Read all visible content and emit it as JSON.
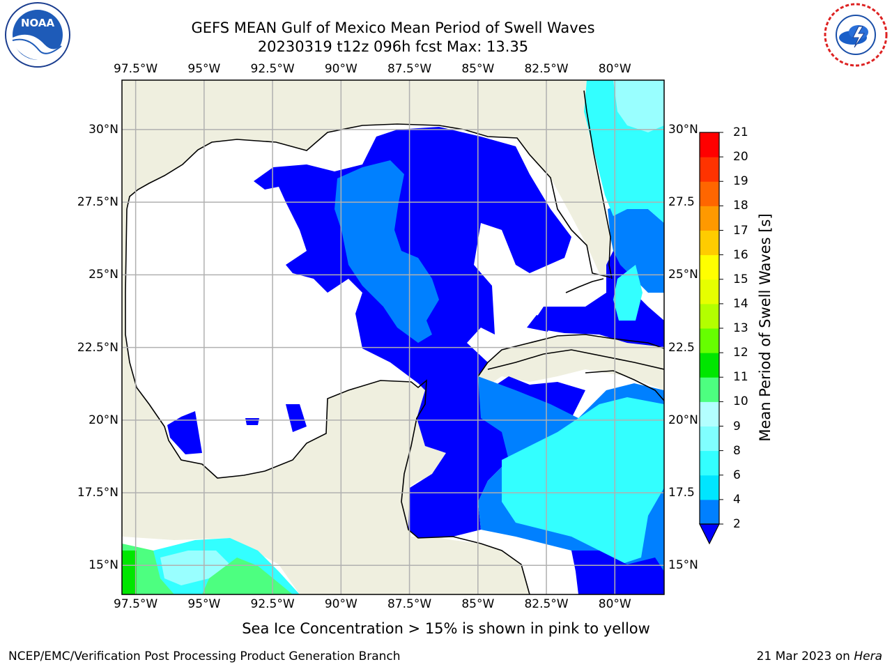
{
  "header": {
    "title_line1": "GEFS MEAN Gulf of Mexico Mean Period of Swell Waves",
    "title_line2": "20230319 t12z 096h fcst   Max: 13.35"
  },
  "map": {
    "lon_labels": [
      "97.5°W",
      "95°W",
      "92.5°W",
      "90°W",
      "87.5°W",
      "85°W",
      "82.5°W",
      "80°W"
    ],
    "lat_labels_left": [
      "30°N",
      "27.5°N",
      "25°N",
      "22.5°N",
      "20°N",
      "17.5°N",
      "15°N"
    ],
    "lat_labels_right": [
      "30°N",
      "27.5",
      "25°N",
      "22.5",
      "20°N",
      "17.5",
      "15°N"
    ],
    "gridlines": true,
    "extent": {
      "lon_min": -98.0,
      "lon_max": -78.2,
      "lat_min": 14.0,
      "lat_max": 31.7
    }
  },
  "colorbar": {
    "title": "Mean Period of Swell Waves [s]",
    "tick_labels": [
      "2",
      "4",
      "6",
      "8",
      "9",
      "10",
      "11",
      "12",
      "13",
      "14",
      "15",
      "16",
      "17",
      "18",
      "19",
      "20",
      "21"
    ],
    "level_colors": [
      "#0000ff",
      "#0080ff",
      "#00e5ff",
      "#33ffff",
      "#80ffff",
      "#b3ffff",
      "#4dff80",
      "#00e600",
      "#66ff00",
      "#b3ff00",
      "#e6ff00",
      "#ffff00",
      "#ffcc00",
      "#ff9900",
      "#ff6600",
      "#ff3300",
      "#ff0000"
    ],
    "extend": "min"
  },
  "colors": {
    "land": "#efefdf",
    "grid": "#b0b0b0",
    "blue_level": "#0000ff",
    "medium_blue": "#0080ff",
    "cyan": "#33ffff",
    "light_cyan": "#99ffff",
    "green": "#33cc33"
  },
  "logos": {
    "left": {
      "name": "NOAA",
      "text": "NOAA"
    },
    "right": {
      "name": "National Weather Service"
    }
  },
  "footer": {
    "note": "Sea Ice Concentration > 15% is shown in pink to yellow",
    "left": "NCEP/EMC/Verification Post Processing Product Generation Branch",
    "right_prefix": "21 Mar 2023 on ",
    "right_host": "Hera"
  }
}
